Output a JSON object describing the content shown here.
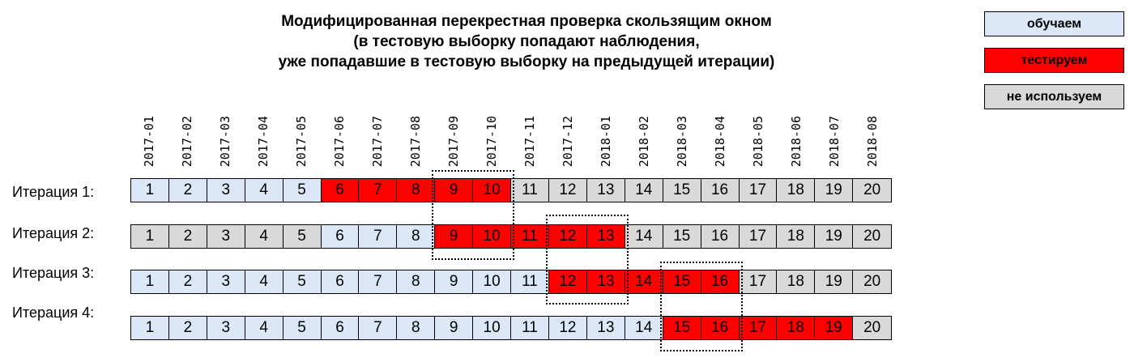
{
  "title": [
    "Модифицированная перекрестная проверка скользящим окном",
    "(в тестовую выборку попадают наблюдения,",
    "уже попадавшие в тестовую выборку на предыдущей итерации)"
  ],
  "legend": [
    {
      "key": "train",
      "label": "обучаем",
      "color": "#dce8f7"
    },
    {
      "key": "test",
      "label": "тестируем",
      "color": "#ff0000"
    },
    {
      "key": "unused",
      "label": "не используем",
      "color": "#d9d9d9"
    }
  ],
  "months": [
    "2017-01",
    "2017-02",
    "2017-03",
    "2017-04",
    "2017-05",
    "2017-06",
    "2017-07",
    "2017-08",
    "2017-09",
    "2017-10",
    "2017-11",
    "2017-12",
    "2018-01",
    "2018-02",
    "2018-03",
    "2018-04",
    "2018-05",
    "2018-06",
    "2018-07",
    "2018-08"
  ],
  "cells": [
    "1",
    "2",
    "3",
    "4",
    "5",
    "6",
    "7",
    "8",
    "9",
    "10",
    "11",
    "12",
    "13",
    "14",
    "15",
    "16",
    "17",
    "18",
    "19",
    "20"
  ],
  "iterations": [
    {
      "label": "Итерация 1:",
      "train": [
        1,
        5
      ],
      "test": [
        6,
        10
      ],
      "highlight": [
        9,
        10
      ]
    },
    {
      "label": "Итерация 2:",
      "train": [
        6,
        8
      ],
      "test": [
        9,
        13
      ],
      "highlight": [
        12,
        13
      ],
      "unused_before": [
        1,
        5
      ]
    },
    {
      "label": "Итерация 3:",
      "train": [
        1,
        11
      ],
      "test": [
        12,
        16
      ],
      "highlight": [
        15,
        16
      ]
    },
    {
      "label": "Итерация 4:",
      "train": [
        1,
        14
      ],
      "test": [
        15,
        19
      ],
      "highlight": [
        15,
        16
      ]
    }
  ]
}
